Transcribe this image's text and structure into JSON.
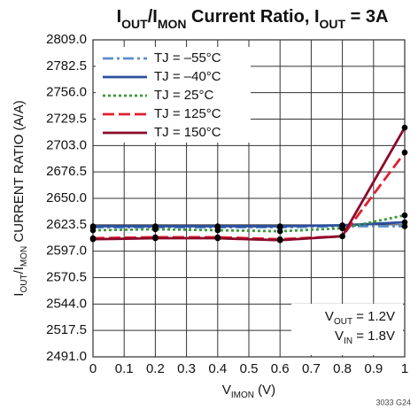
{
  "chart_data": {
    "type": "line",
    "title": [
      {
        "text": "I"
      },
      {
        "text": "OUT",
        "sub": true
      },
      {
        "text": "/I"
      },
      {
        "text": "MON",
        "sub": true
      },
      {
        "text": " Current Ratio, I"
      },
      {
        "text": "OUT",
        "sub": true
      },
      {
        "text": " = 3A"
      }
    ],
    "ylabel": [
      {
        "text": "I"
      },
      {
        "text": "OUT",
        "sub": true
      },
      {
        "text": "/I"
      },
      {
        "text": "MON",
        "sub": true
      },
      {
        "text": " CURRENT RATIO (A/A)"
      }
    ],
    "xlabel": [
      {
        "text": "V"
      },
      {
        "text": "IMON",
        "sub": true
      },
      {
        "text": " (V)"
      }
    ],
    "annotations": [
      [
        {
          "text": "V"
        },
        {
          "text": "OUT",
          "sub": true
        },
        {
          "text": " = 1.2V"
        }
      ],
      [
        {
          "text": "V"
        },
        {
          "text": "IN",
          "sub": true
        },
        {
          "text": " = 1.8V"
        }
      ]
    ],
    "footnote": "3033 G24",
    "x": [
      0,
      0.2,
      0.4,
      0.6,
      0.8,
      1.0
    ],
    "series": [
      {
        "name": "TJ = –55°C",
        "color": "#5b8fd0",
        "dash": "dashdot",
        "values": [
          2621,
          2621,
          2621,
          2621,
          2622,
          2622
        ]
      },
      {
        "name": "TJ = –40°C",
        "color": "#2b4f9e",
        "dash": "solid",
        "values": [
          2622,
          2622,
          2622,
          2622,
          2623,
          2626
        ]
      },
      {
        "name": "TJ = 25°C",
        "color": "#3a9a3a",
        "dash": "dotted",
        "values": [
          2618,
          2619,
          2618,
          2617,
          2620,
          2633
        ]
      },
      {
        "name": "TJ = 125°C",
        "color": "#e0202f",
        "dash": "dashed",
        "values": [
          2610,
          2611,
          2611,
          2609,
          2612,
          2696
        ]
      },
      {
        "name": "TJ = 150°C",
        "color": "#8b0a2a",
        "dash": "solid",
        "values": [
          2609,
          2610,
          2610,
          2608,
          2612,
          2721
        ]
      }
    ],
    "xlim": [
      0,
      1
    ],
    "xticks": [
      0,
      0.1,
      0.2,
      0.3,
      0.4,
      0.5,
      0.6,
      0.7,
      0.8,
      0.9,
      1
    ],
    "ylim": [
      2491,
      2809
    ],
    "yticks": [
      {
        "value": 2491,
        "label": "2491.0"
      },
      2517.5,
      {
        "value": 2544,
        "label": "2544.0"
      },
      2570.5,
      {
        "value": 2597,
        "label": "2597.0"
      },
      2623.5,
      {
        "value": 2650,
        "label": "2650.0"
      },
      2676.5,
      {
        "value": 2703,
        "label": "2703.0"
      },
      2729.5,
      {
        "value": 2756,
        "label": "2756.0"
      },
      2782.5,
      {
        "value": 2809,
        "label": "2809.0"
      }
    ],
    "grid": true,
    "legend": "upper left",
    "markers": true
  }
}
